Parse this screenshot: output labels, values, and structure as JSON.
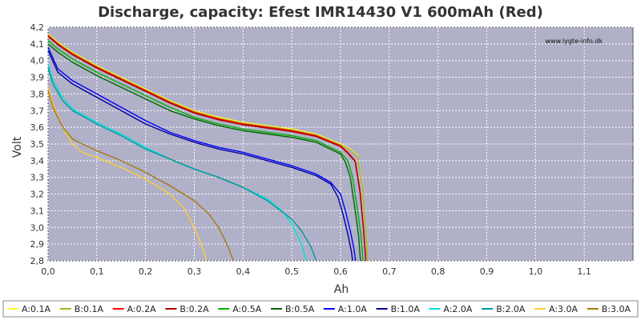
{
  "chart_data": {
    "type": "line",
    "title": "Discharge, capacity: Efest IMR14430 V1 600mAh (Red)",
    "watermark": "www.lygte-info.dk",
    "xlabel": "Ah",
    "ylabel": "Volt",
    "xlim": [
      0.0,
      1.2
    ],
    "ylim": [
      2.8,
      4.2
    ],
    "xticks": [
      "0,0",
      "0,1",
      "0,2",
      "0,3",
      "0,4",
      "0,5",
      "0,6",
      "0,7",
      "0,8",
      "0,9",
      "1,0",
      "1,1"
    ],
    "yticks": [
      "2,8",
      "2,9",
      "3,0",
      "3,1",
      "3,2",
      "3,3",
      "3,4",
      "3,5",
      "3,6",
      "3,7",
      "3,8",
      "3,9",
      "4,0",
      "4,1",
      "4,2"
    ],
    "grid": true,
    "legend_position": "bottom",
    "plot_background": "#b0b0c8",
    "series": [
      {
        "name": "A:0.1A",
        "color": "#ffff33",
        "x": [
          0,
          0.02,
          0.05,
          0.1,
          0.15,
          0.2,
          0.25,
          0.3,
          0.35,
          0.4,
          0.45,
          0.5,
          0.55,
          0.6,
          0.62,
          0.635,
          0.645,
          0.652,
          0.656
        ],
        "y": [
          4.16,
          4.11,
          4.05,
          3.97,
          3.9,
          3.83,
          3.76,
          3.7,
          3.66,
          3.63,
          3.61,
          3.59,
          3.56,
          3.5,
          3.47,
          3.43,
          3.25,
          3.0,
          2.8
        ]
      },
      {
        "name": "B:0.1A",
        "color": "#b0b020",
        "x": [
          0,
          0.02,
          0.05,
          0.1,
          0.15,
          0.2,
          0.25,
          0.3,
          0.35,
          0.4,
          0.45,
          0.5,
          0.55,
          0.6,
          0.62,
          0.635,
          0.645,
          0.652,
          0.656
        ],
        "y": [
          4.155,
          4.105,
          4.045,
          3.965,
          3.895,
          3.825,
          3.755,
          3.695,
          3.655,
          3.625,
          3.605,
          3.585,
          3.555,
          3.495,
          3.465,
          3.425,
          3.24,
          2.99,
          2.8
        ]
      },
      {
        "name": "A:0.2A",
        "color": "#ff0000",
        "x": [
          0,
          0.02,
          0.05,
          0.1,
          0.15,
          0.2,
          0.25,
          0.3,
          0.35,
          0.4,
          0.45,
          0.5,
          0.55,
          0.6,
          0.615,
          0.63,
          0.64,
          0.647,
          0.652
        ],
        "y": [
          4.15,
          4.1,
          4.04,
          3.96,
          3.89,
          3.82,
          3.75,
          3.69,
          3.65,
          3.62,
          3.6,
          3.58,
          3.55,
          3.49,
          3.45,
          3.4,
          3.22,
          3.0,
          2.8
        ]
      },
      {
        "name": "B:0.2A",
        "color": "#aa0000",
        "x": [
          0,
          0.02,
          0.05,
          0.1,
          0.15,
          0.2,
          0.25,
          0.3,
          0.35,
          0.4,
          0.45,
          0.5,
          0.55,
          0.6,
          0.615,
          0.63,
          0.64,
          0.647,
          0.652
        ],
        "y": [
          4.145,
          4.095,
          4.035,
          3.955,
          3.885,
          3.815,
          3.745,
          3.685,
          3.645,
          3.615,
          3.595,
          3.575,
          3.545,
          3.485,
          3.445,
          3.395,
          3.21,
          2.99,
          2.8
        ]
      },
      {
        "name": "A:0.5A",
        "color": "#00b000",
        "x": [
          0,
          0.02,
          0.05,
          0.1,
          0.15,
          0.2,
          0.25,
          0.3,
          0.35,
          0.4,
          0.45,
          0.5,
          0.55,
          0.6,
          0.615,
          0.625,
          0.635,
          0.642,
          0.646
        ],
        "y": [
          4.12,
          4.07,
          4.01,
          3.93,
          3.86,
          3.79,
          3.72,
          3.66,
          3.62,
          3.59,
          3.57,
          3.55,
          3.52,
          3.45,
          3.4,
          3.3,
          3.1,
          2.95,
          2.8
        ]
      },
      {
        "name": "B:0.5A",
        "color": "#006600",
        "x": [
          0,
          0.02,
          0.05,
          0.1,
          0.15,
          0.2,
          0.25,
          0.3,
          0.35,
          0.4,
          0.45,
          0.5,
          0.55,
          0.6,
          0.61,
          0.62,
          0.63,
          0.637,
          0.641
        ],
        "y": [
          4.1,
          4.05,
          3.99,
          3.91,
          3.84,
          3.77,
          3.7,
          3.65,
          3.61,
          3.58,
          3.56,
          3.54,
          3.51,
          3.44,
          3.39,
          3.3,
          3.1,
          2.95,
          2.8
        ]
      },
      {
        "name": "A:1.0A",
        "color": "#0000ff",
        "x": [
          0,
          0.02,
          0.05,
          0.1,
          0.15,
          0.2,
          0.25,
          0.3,
          0.35,
          0.4,
          0.45,
          0.5,
          0.55,
          0.58,
          0.6,
          0.61,
          0.62,
          0.627,
          0.631
        ],
        "y": [
          4.08,
          3.95,
          3.88,
          3.8,
          3.72,
          3.64,
          3.57,
          3.52,
          3.48,
          3.45,
          3.41,
          3.37,
          3.32,
          3.27,
          3.2,
          3.1,
          2.98,
          2.88,
          2.8
        ]
      },
      {
        "name": "B:1.0A",
        "color": "#000099",
        "x": [
          0,
          0.02,
          0.05,
          0.1,
          0.15,
          0.2,
          0.25,
          0.3,
          0.35,
          0.4,
          0.45,
          0.5,
          0.55,
          0.58,
          0.595,
          0.605,
          0.615,
          0.622,
          0.625
        ],
        "y": [
          4.06,
          3.93,
          3.86,
          3.78,
          3.7,
          3.62,
          3.56,
          3.51,
          3.47,
          3.44,
          3.4,
          3.36,
          3.31,
          3.26,
          3.18,
          3.08,
          2.96,
          2.86,
          2.8
        ]
      },
      {
        "name": "A:2.0A",
        "color": "#00e0e0",
        "x": [
          0,
          0.01,
          0.03,
          0.05,
          0.1,
          0.15,
          0.2,
          0.25,
          0.3,
          0.35,
          0.4,
          0.45,
          0.48,
          0.5,
          0.52,
          0.53
        ],
        "y": [
          3.98,
          3.88,
          3.78,
          3.71,
          3.63,
          3.56,
          3.48,
          3.41,
          3.35,
          3.3,
          3.24,
          3.17,
          3.1,
          3.02,
          2.9,
          2.8
        ]
      },
      {
        "name": "B:2.0A",
        "color": "#009999",
        "x": [
          0,
          0.01,
          0.03,
          0.05,
          0.1,
          0.15,
          0.2,
          0.25,
          0.3,
          0.35,
          0.4,
          0.45,
          0.5,
          0.52,
          0.54,
          0.55
        ],
        "y": [
          3.96,
          3.86,
          3.76,
          3.7,
          3.62,
          3.55,
          3.47,
          3.41,
          3.35,
          3.3,
          3.24,
          3.16,
          3.05,
          2.98,
          2.88,
          2.8
        ]
      },
      {
        "name": "A:3.0A",
        "color": "#ffcc33",
        "x": [
          0,
          0.01,
          0.03,
          0.05,
          0.07,
          0.1,
          0.15,
          0.2,
          0.25,
          0.28,
          0.3,
          0.31,
          0.32,
          0.325
        ],
        "y": [
          3.84,
          3.74,
          3.6,
          3.5,
          3.45,
          3.42,
          3.36,
          3.29,
          3.2,
          3.11,
          3.0,
          2.93,
          2.85,
          2.8
        ]
      },
      {
        "name": "B:3.0A",
        "color": "#aa7711",
        "x": [
          0,
          0.01,
          0.03,
          0.05,
          0.07,
          0.1,
          0.15,
          0.2,
          0.25,
          0.3,
          0.33,
          0.35,
          0.37,
          0.38
        ],
        "y": [
          3.82,
          3.72,
          3.6,
          3.53,
          3.5,
          3.46,
          3.4,
          3.33,
          3.25,
          3.16,
          3.08,
          3.0,
          2.88,
          2.8
        ]
      }
    ]
  }
}
